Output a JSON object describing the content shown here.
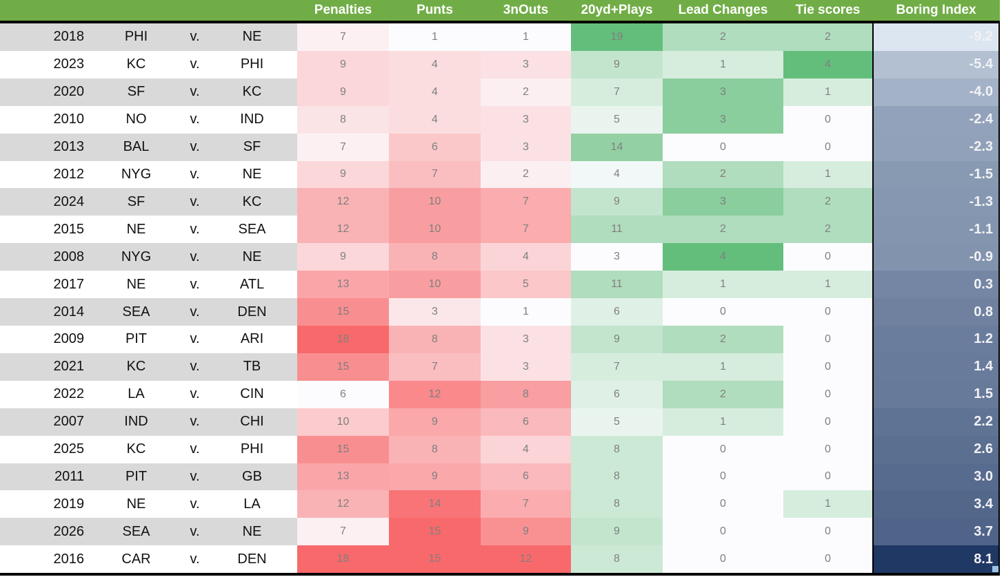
{
  "colors": {
    "header_bg": "#71AD47",
    "header_text": "#FFFFFF",
    "row_band_gray": "#D9D9D9",
    "row_band_white": "#FFFFFF",
    "label_text": "#111111",
    "cell_value_text": "#7F7F7F",
    "scale_min": "#FCFCFF",
    "scale_red_max": "#F8696B",
    "scale_green_max": "#63BE7B",
    "boring_min": "#DCE6F1",
    "boring_max": "#1F3864",
    "boring_text": "#F2F2F6",
    "border_black": "#000000",
    "fill_handle": "#9DC3E6"
  },
  "chart_data": {
    "type": "table",
    "vs_label": "v.",
    "legend_note": "heatmap-table: red scale = Penalties/Punts/3nOuts (higher is redder), green scale = 20yd+Plays/Lead Changes/Tie scores (higher is greener), blue scale = Boring Index (higher is darker)",
    "columns": [
      {
        "key": "year",
        "label": "",
        "scale": "none"
      },
      {
        "key": "team1",
        "label": "",
        "scale": "none"
      },
      {
        "key": "vs",
        "label": "",
        "scale": "none"
      },
      {
        "key": "team2",
        "label": "",
        "scale": "none"
      },
      {
        "key": "penalties",
        "label": "Penalties",
        "scale": "red"
      },
      {
        "key": "punts",
        "label": "Punts",
        "scale": "red"
      },
      {
        "key": "three_and_outs",
        "label": "3nOuts",
        "scale": "red"
      },
      {
        "key": "plays_20yd_plus",
        "label": "20yd+Plays",
        "scale": "green"
      },
      {
        "key": "lead_changes",
        "label": "Lead Changes",
        "scale": "green"
      },
      {
        "key": "tie_scores",
        "label": "Tie scores",
        "scale": "green"
      },
      {
        "key": "boring_index",
        "label": "Boring Index",
        "scale": "blue"
      }
    ],
    "rows": [
      {
        "year": "2018",
        "team1": "PHI",
        "team2": "NE",
        "penalties": 7,
        "punts": 1,
        "three_and_outs": 1,
        "plays_20yd_plus": 19,
        "lead_changes": 2,
        "tie_scores": 2,
        "boring_index": -9.2
      },
      {
        "year": "2023",
        "team1": "KC",
        "team2": "PHI",
        "penalties": 9,
        "punts": 4,
        "three_and_outs": 3,
        "plays_20yd_plus": 9,
        "lead_changes": 1,
        "tie_scores": 4,
        "boring_index": -5.4
      },
      {
        "year": "2020",
        "team1": "SF",
        "team2": "KC",
        "penalties": 9,
        "punts": 4,
        "three_and_outs": 2,
        "plays_20yd_plus": 7,
        "lead_changes": 3,
        "tie_scores": 1,
        "boring_index": -4.0
      },
      {
        "year": "2010",
        "team1": "NO",
        "team2": "IND",
        "penalties": 8,
        "punts": 4,
        "three_and_outs": 3,
        "plays_20yd_plus": 5,
        "lead_changes": 3,
        "tie_scores": 0,
        "boring_index": -2.4
      },
      {
        "year": "2013",
        "team1": "BAL",
        "team2": "SF",
        "penalties": 7,
        "punts": 6,
        "three_and_outs": 3,
        "plays_20yd_plus": 14,
        "lead_changes": 0,
        "tie_scores": 0,
        "boring_index": -2.3
      },
      {
        "year": "2012",
        "team1": "NYG",
        "team2": "NE",
        "penalties": 9,
        "punts": 7,
        "three_and_outs": 2,
        "plays_20yd_plus": 4,
        "lead_changes": 2,
        "tie_scores": 1,
        "boring_index": -1.5
      },
      {
        "year": "2024",
        "team1": "SF",
        "team2": "KC",
        "penalties": 12,
        "punts": 10,
        "three_and_outs": 7,
        "plays_20yd_plus": 9,
        "lead_changes": 3,
        "tie_scores": 2,
        "boring_index": -1.3
      },
      {
        "year": "2015",
        "team1": "NE",
        "team2": "SEA",
        "penalties": 12,
        "punts": 10,
        "three_and_outs": 7,
        "plays_20yd_plus": 11,
        "lead_changes": 2,
        "tie_scores": 2,
        "boring_index": -1.1
      },
      {
        "year": "2008",
        "team1": "NYG",
        "team2": "NE",
        "penalties": 9,
        "punts": 8,
        "three_and_outs": 4,
        "plays_20yd_plus": 3,
        "lead_changes": 4,
        "tie_scores": 0,
        "boring_index": -0.9
      },
      {
        "year": "2017",
        "team1": "NE",
        "team2": "ATL",
        "penalties": 13,
        "punts": 10,
        "three_and_outs": 5,
        "plays_20yd_plus": 11,
        "lead_changes": 1,
        "tie_scores": 1,
        "boring_index": 0.3
      },
      {
        "year": "2014",
        "team1": "SEA",
        "team2": "DEN",
        "penalties": 15,
        "punts": 3,
        "three_and_outs": 1,
        "plays_20yd_plus": 6,
        "lead_changes": 0,
        "tie_scores": 0,
        "boring_index": 0.8
      },
      {
        "year": "2009",
        "team1": "PIT",
        "team2": "ARI",
        "penalties": 18,
        "punts": 8,
        "three_and_outs": 3,
        "plays_20yd_plus": 9,
        "lead_changes": 2,
        "tie_scores": 0,
        "boring_index": 1.2
      },
      {
        "year": "2021",
        "team1": "KC",
        "team2": "TB",
        "penalties": 15,
        "punts": 7,
        "three_and_outs": 3,
        "plays_20yd_plus": 7,
        "lead_changes": 1,
        "tie_scores": 0,
        "boring_index": 1.4
      },
      {
        "year": "2022",
        "team1": "LA",
        "team2": "CIN",
        "penalties": 6,
        "punts": 12,
        "three_and_outs": 8,
        "plays_20yd_plus": 6,
        "lead_changes": 2,
        "tie_scores": 0,
        "boring_index": 1.5
      },
      {
        "year": "2007",
        "team1": "IND",
        "team2": "CHI",
        "penalties": 10,
        "punts": 9,
        "three_and_outs": 6,
        "plays_20yd_plus": 5,
        "lead_changes": 1,
        "tie_scores": 0,
        "boring_index": 2.2
      },
      {
        "year": "2025",
        "team1": "KC",
        "team2": "PHI",
        "penalties": 15,
        "punts": 8,
        "three_and_outs": 4,
        "plays_20yd_plus": 8,
        "lead_changes": 0,
        "tie_scores": 0,
        "boring_index": 2.6
      },
      {
        "year": "2011",
        "team1": "PIT",
        "team2": "GB",
        "penalties": 13,
        "punts": 9,
        "three_and_outs": 6,
        "plays_20yd_plus": 8,
        "lead_changes": 0,
        "tie_scores": 0,
        "boring_index": 3.0
      },
      {
        "year": "2019",
        "team1": "NE",
        "team2": "LA",
        "penalties": 12,
        "punts": 14,
        "three_and_outs": 7,
        "plays_20yd_plus": 8,
        "lead_changes": 0,
        "tie_scores": 1,
        "boring_index": 3.4
      },
      {
        "year": "2026",
        "team1": "SEA",
        "team2": "NE",
        "penalties": 7,
        "punts": 15,
        "three_and_outs": 9,
        "plays_20yd_plus": 9,
        "lead_changes": 0,
        "tie_scores": 0,
        "boring_index": 3.7
      },
      {
        "year": "2016",
        "team1": "CAR",
        "team2": "DEN",
        "penalties": 18,
        "punts": 15,
        "three_and_outs": 12,
        "plays_20yd_plus": 8,
        "lead_changes": 0,
        "tie_scores": 0,
        "boring_index": 8.1
      }
    ]
  }
}
